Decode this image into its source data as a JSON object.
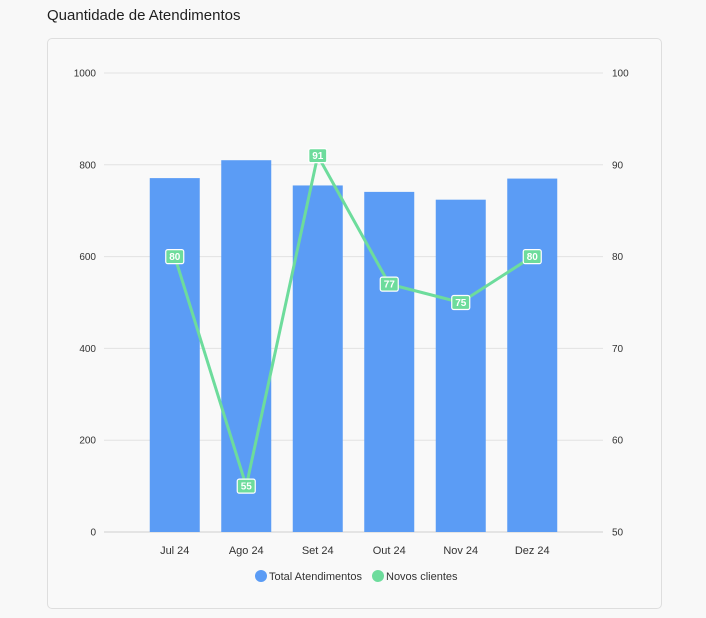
{
  "title": "Quantidade de Atendimentos",
  "chart_data": {
    "type": "bar",
    "categories": [
      "Jul 24",
      "Ago 24",
      "Set 24",
      "Out 24",
      "Nov 24",
      "Dez 24"
    ],
    "series": [
      {
        "name": "Total Atendimentos",
        "type": "bar",
        "axis": "left",
        "color": "#5b9cf5",
        "values": [
          771,
          810,
          755,
          741,
          724,
          770
        ]
      },
      {
        "name": "Novos clientes",
        "type": "line",
        "axis": "right",
        "color": "#6ddc9c",
        "values": [
          80,
          55,
          91,
          77,
          75,
          80
        ]
      }
    ],
    "y_left": {
      "min": 0,
      "max": 1000,
      "ticks": [
        0,
        200,
        400,
        600,
        800,
        1000
      ]
    },
    "y_right": {
      "min": 50,
      "max": 100,
      "ticks": [
        50,
        60,
        70,
        80,
        90,
        100
      ]
    },
    "legend": "bottom-center",
    "grid": true
  }
}
